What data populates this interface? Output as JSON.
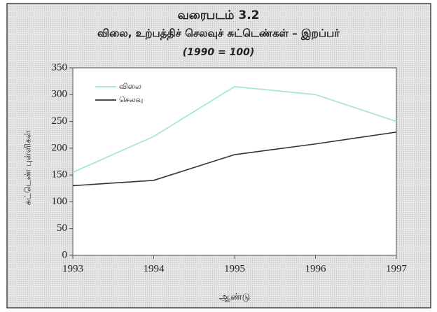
{
  "chart_data": {
    "type": "line",
    "title": "வரைபடம் 3.2",
    "subtitle": "விலை, உற்பத்திச் செலவுச் சுட்டெண்கள் – இறப்பர்",
    "note": "(1990 = 100)",
    "x_label": "ஆண்டு",
    "y_label": "சுட்டெண் புள்ளிகள்",
    "x": [
      1993,
      1994,
      1995,
      1996,
      1997
    ],
    "series": [
      {
        "name": "விலை",
        "color": "#a6e6dc",
        "values": [
          155,
          222,
          315,
          300,
          250
        ]
      },
      {
        "name": "செலவு",
        "color": "#333333",
        "values": [
          130,
          140,
          188,
          208,
          230
        ]
      }
    ],
    "xlim": [
      1993,
      1997
    ],
    "xticks": [
      1993,
      1994,
      1995,
      1996,
      1997
    ],
    "ylim": [
      0,
      350
    ],
    "yticks": [
      0,
      50,
      100,
      150,
      200,
      250,
      300,
      350
    ],
    "legend": "upper left"
  }
}
